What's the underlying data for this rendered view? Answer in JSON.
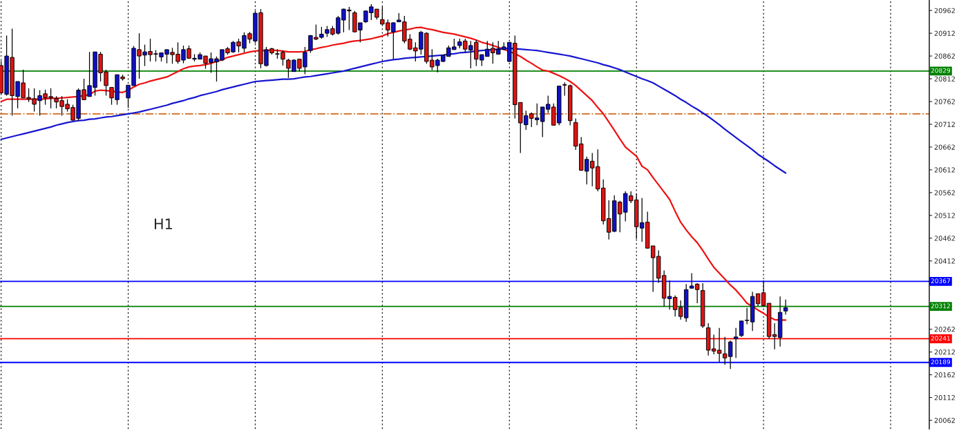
{
  "chart_data": {
    "type": "candlestick",
    "categories": [
      null,
      null,
      null,
      null,
      null,
      null,
      null,
      null,
      null,
      null,
      null,
      null,
      null,
      null,
      null,
      null,
      null,
      null,
      null,
      null,
      null,
      null,
      null,
      null,
      null,
      null,
      null,
      null,
      null,
      null,
      null,
      null,
      null,
      null,
      null,
      null,
      null,
      null,
      null,
      null,
      null,
      null,
      null,
      null,
      null,
      null,
      null,
      null,
      null,
      null,
      null,
      null,
      null,
      null,
      null,
      null,
      null,
      null,
      null,
      null,
      null,
      null,
      null,
      null,
      null,
      null,
      null,
      null,
      null,
      null,
      null,
      null,
      null,
      null,
      null,
      null,
      null,
      null,
      null,
      null,
      null,
      null,
      null,
      null,
      null,
      null,
      null,
      null,
      null,
      null,
      null,
      null,
      null,
      null,
      null,
      null,
      null,
      null,
      null,
      null,
      null,
      null,
      null,
      null,
      null,
      null,
      null,
      null,
      null,
      null,
      null,
      null,
      null,
      null,
      null,
      null,
      null,
      null,
      null,
      null,
      null,
      null,
      null,
      null,
      null,
      null,
      null,
      null,
      null,
      null,
      null,
      null,
      null,
      null,
      null,
      null,
      null,
      null,
      null,
      null,
      null,
      null,
      null
    ],
    "ohlc": [
      [
        20841,
        20851,
        20778,
        20781
      ],
      [
        20778,
        20907,
        20775,
        20862
      ],
      [
        20859,
        20922,
        20731,
        20775
      ],
      [
        20773,
        20806,
        20747,
        20806
      ],
      [
        20803,
        20832,
        20770,
        20770
      ],
      [
        20771,
        20791,
        20761,
        20768
      ],
      [
        20768,
        20791,
        20740,
        20756
      ],
      [
        20764,
        20787,
        20731,
        20775
      ],
      [
        20779,
        20788,
        20755,
        20770
      ],
      [
        20773,
        20791,
        20747,
        20770
      ],
      [
        20769,
        20774,
        20747,
        20761
      ],
      [
        20764,
        20774,
        20731,
        20751
      ],
      [
        20756,
        20767,
        20740,
        20746
      ],
      [
        20749,
        20755,
        20720,
        20721
      ],
      [
        20725,
        20791,
        20720,
        20787
      ],
      [
        20788,
        20812,
        20766,
        20766
      ],
      [
        20773,
        20871,
        20773,
        20797
      ],
      [
        20793,
        20871,
        20775,
        20871
      ],
      [
        20866,
        20871,
        20806,
        20825
      ],
      [
        20827,
        20832,
        20775,
        20797
      ],
      [
        20793,
        20793,
        20755,
        20770
      ],
      [
        20766,
        20821,
        20755,
        20821
      ],
      [
        20816,
        20821,
        20808,
        20812
      ],
      [
        20770,
        20798,
        20748,
        20798
      ],
      [
        20797,
        20884,
        20797,
        20879
      ],
      [
        20876,
        20912,
        20812,
        20862
      ],
      [
        20864,
        20887,
        20840,
        20871
      ],
      [
        20872,
        20900,
        20850,
        20865
      ],
      [
        20866,
        20875,
        20850,
        20867
      ],
      [
        20860,
        20869,
        20850,
        20869
      ],
      [
        20866,
        20876,
        20846,
        20876
      ],
      [
        20870,
        20880,
        20845,
        20865
      ],
      [
        20866,
        20892,
        20845,
        20850
      ],
      [
        20853,
        20885,
        20846,
        20876
      ],
      [
        20878,
        20885,
        20856,
        20857
      ],
      [
        20855,
        20866,
        20850,
        20857
      ],
      [
        20855,
        20870,
        20855,
        20865
      ],
      [
        20862,
        20862,
        20834,
        20846
      ],
      [
        20848,
        20870,
        20825,
        20856
      ],
      [
        20849,
        20861,
        20806,
        20856
      ],
      [
        20853,
        20876,
        20851,
        20876
      ],
      [
        20878,
        20882,
        20865,
        20869
      ],
      [
        20871,
        20895,
        20869,
        20892
      ],
      [
        20893,
        20900,
        20870,
        20884
      ],
      [
        20879,
        20914,
        20870,
        20907
      ],
      [
        20911,
        20915,
        20890,
        20899
      ],
      [
        20895,
        20961,
        20890,
        20956
      ],
      [
        20957,
        20965,
        20835,
        20845
      ],
      [
        20841,
        20882,
        20839,
        20876
      ],
      [
        20878,
        20880,
        20865,
        20869
      ],
      [
        20867,
        20877,
        20856,
        20866
      ],
      [
        20870,
        20874,
        20841,
        20855
      ],
      [
        20853,
        20856,
        20814,
        20835
      ],
      [
        20828,
        20855,
        20827,
        20853
      ],
      [
        20855,
        20856,
        20828,
        20835
      ],
      [
        20838,
        20882,
        20822,
        20870
      ],
      [
        20874,
        20908,
        20869,
        20907
      ],
      [
        20903,
        20931,
        20897,
        20899
      ],
      [
        20903,
        20926,
        20900,
        20910
      ],
      [
        20912,
        20928,
        20904,
        20920
      ],
      [
        20922,
        20928,
        20907,
        20910
      ],
      [
        20912,
        20950,
        20909,
        20946
      ],
      [
        20941,
        20966,
        20914,
        20965
      ],
      [
        20963,
        20970,
        20919,
        20961
      ],
      [
        20957,
        20961,
        20914,
        20915
      ],
      [
        20919,
        20935,
        20892,
        20935
      ],
      [
        20937,
        20961,
        20935,
        20961
      ],
      [
        20957,
        20976,
        20941,
        20970
      ],
      [
        20965,
        20965,
        20942,
        20947
      ],
      [
        20942,
        20970,
        20931,
        20932
      ],
      [
        20935,
        20942,
        20905,
        20919
      ],
      [
        20915,
        20936,
        20855,
        20935
      ],
      [
        20937,
        20956,
        20937,
        20941
      ],
      [
        20937,
        20950,
        20890,
        20895
      ],
      [
        20899,
        20910,
        20875,
        20877
      ],
      [
        20880,
        20892,
        20850,
        20873
      ],
      [
        20877,
        20917,
        20865,
        20914
      ],
      [
        20912,
        20914,
        20845,
        20850
      ],
      [
        20853,
        20877,
        20831,
        20838
      ],
      [
        20841,
        20856,
        20826,
        20853
      ],
      [
        20850,
        20865,
        20849,
        20864
      ],
      [
        20861,
        20885,
        20861,
        20880
      ],
      [
        20876,
        20900,
        20876,
        20882
      ],
      [
        20885,
        20900,
        20879,
        20893
      ],
      [
        20895,
        20900,
        20870,
        20877
      ],
      [
        20875,
        20895,
        20835,
        20885
      ],
      [
        20892,
        20897,
        20840,
        20855
      ],
      [
        20853,
        20865,
        20840,
        20865
      ],
      [
        20861,
        20895,
        20861,
        20877
      ],
      [
        20879,
        20892,
        20845,
        20869
      ],
      [
        20866,
        20895,
        20866,
        20877
      ],
      [
        20876,
        20892,
        20875,
        20882
      ],
      [
        20850,
        20892,
        20849,
        20892
      ],
      [
        20890,
        20907,
        20725,
        20755
      ],
      [
        20760,
        20760,
        20649,
        20715
      ],
      [
        20711,
        20742,
        20700,
        20731
      ],
      [
        20735,
        20738,
        20706,
        20725
      ],
      [
        20722,
        20758,
        20710,
        20726
      ],
      [
        20718,
        20750,
        20684,
        20750
      ],
      [
        20745,
        20775,
        20737,
        20756
      ],
      [
        20750,
        20758,
        20710,
        20710
      ],
      [
        20715,
        20796,
        20710,
        20796
      ],
      [
        20799,
        20804,
        20775,
        20798
      ],
      [
        20797,
        20799,
        20710,
        20720
      ],
      [
        20716,
        20725,
        20656,
        20664
      ],
      [
        20669,
        20684,
        20610,
        20611
      ],
      [
        20609,
        20641,
        20580,
        20635
      ],
      [
        20631,
        20649,
        20576,
        20616
      ],
      [
        20619,
        20657,
        20565,
        20570
      ],
      [
        20572,
        20591,
        20492,
        20500
      ],
      [
        20505,
        20545,
        20459,
        20475
      ],
      [
        20477,
        20556,
        20475,
        20544
      ],
      [
        20541,
        20544,
        20475,
        20515
      ],
      [
        20519,
        20565,
        20499,
        20560
      ],
      [
        20555,
        20565,
        20539,
        20544
      ],
      [
        20546,
        20560,
        20460,
        20487
      ],
      [
        20484,
        20550,
        20454,
        20496
      ],
      [
        20497,
        20520,
        20439,
        20440
      ],
      [
        20445,
        20445,
        20344,
        20419
      ],
      [
        20422,
        20435,
        20364,
        20374
      ],
      [
        20380,
        20391,
        20312,
        20330
      ],
      [
        20329,
        20369,
        20305,
        20334
      ],
      [
        20332,
        20336,
        20290,
        20305
      ],
      [
        20310,
        20325,
        20283,
        20290
      ],
      [
        20287,
        20361,
        20278,
        20349
      ],
      [
        20352,
        20385,
        20352,
        20357
      ],
      [
        20361,
        20363,
        20319,
        20349
      ],
      [
        20347,
        20363,
        20265,
        20269
      ],
      [
        20265,
        20275,
        20204,
        20216
      ],
      [
        20219,
        20250,
        20207,
        20214
      ],
      [
        20216,
        20265,
        20189,
        20209
      ],
      [
        20208,
        20245,
        20184,
        20199
      ],
      [
        20202,
        20237,
        20175,
        20234
      ],
      [
        20241,
        20265,
        20199,
        20245
      ],
      [
        20248,
        20280,
        20245,
        20280
      ],
      [
        20281,
        20309,
        20273,
        20282
      ],
      [
        20278,
        20344,
        20258,
        20334
      ],
      [
        20340,
        20340,
        20313,
        20318
      ],
      [
        20342,
        20369,
        20312,
        20314
      ],
      [
        20319,
        20319,
        20241,
        20246
      ],
      [
        20250,
        20275,
        20218,
        20246
      ],
      [
        20244,
        20334,
        20224,
        20299
      ],
      [
        20302,
        20327,
        20294,
        20309
      ]
    ],
    "colors": [
      "#dc1414",
      "#1010c8",
      "#dc1414",
      "#1010c8",
      "#dc1414",
      "#dc1414",
      "#dc1414",
      "#1010c8",
      "#dc1414",
      "#dc1414",
      "#dc1414",
      "#dc1414",
      "#dc1414",
      "#dc1414",
      "#1010c8",
      "#dc1414",
      "#1010c8",
      "#1010c8",
      "#dc1414",
      "#dc1414",
      "#dc1414",
      "#1010c8",
      "#dc1414",
      "#1010c8",
      "#1010c8",
      "#dc1414",
      "#1010c8",
      "#dc1414",
      "#1010c8",
      "#1010c8",
      "#1010c8",
      "#dc1414",
      "#dc1414",
      "#1010c8",
      "#dc1414",
      "#1010c8",
      "#1010c8",
      "#dc1414",
      "#1010c8",
      "#1010c8",
      "#1010c8",
      "#dc1414",
      "#1010c8",
      "#dc1414",
      "#1010c8",
      "#dc1414",
      "#1010c8",
      "#dc1414",
      "#1010c8",
      "#dc1414",
      "#dc1414",
      "#dc1414",
      "#dc1414",
      "#1010c8",
      "#dc1414",
      "#1010c8",
      "#1010c8",
      "#dc1414",
      "#1010c8",
      "#1010c8",
      "#dc1414",
      "#1010c8",
      "#1010c8",
      "#dc1414",
      "#dc1414",
      "#1010c8",
      "#1010c8",
      "#1010c8",
      "#dc1414",
      "#dc1414",
      "#dc1414",
      "#1010c8",
      "#1010c8",
      "#dc1414",
      "#dc1414",
      "#dc1414",
      "#1010c8",
      "#dc1414",
      "#dc1414",
      "#1010c8",
      "#1010c8",
      "#1010c8",
      "#1010c8",
      "#1010c8",
      "#dc1414",
      "#1010c8",
      "#dc1414",
      "#1010c8",
      "#1010c8",
      "#dc1414",
      "#1010c8",
      "#1010c8",
      "#1010c8",
      "#dc1414",
      "#dc1414",
      "#1010c8",
      "#dc1414",
      "#1010c8",
      "#1010c8",
      "#1010c8",
      "#dc1414",
      "#1010c8",
      "#dc1414",
      "#dc1414",
      "#dc1414",
      "#dc1414",
      "#1010c8",
      "#dc1414",
      "#dc1414",
      "#dc1414",
      "#dc1414",
      "#1010c8",
      "#dc1414",
      "#1010c8",
      "#dc1414",
      "#dc1414",
      "#1010c8",
      "#dc1414",
      "#dc1414",
      "#dc1414",
      "#dc1414",
      "#1010c8",
      "#dc1414",
      "#dc1414",
      "#1010c8",
      "#1010c8",
      "#dc1414",
      "#dc1414",
      "#dc1414",
      "#dc1414",
      "#dc1414",
      "#dc1414",
      "#1010c8",
      "#1010c8",
      "#1010c8",
      "#1010c8",
      "#1010c8",
      "#dc1414",
      "#dc1414",
      "#dc1414",
      "#dc1414",
      "#1010c8",
      "#1010c8"
    ],
    "series": [
      {
        "type": "line",
        "color": "#ee1111",
        "values": [
          20762,
          20767,
          20767,
          20767,
          20767,
          20767,
          20767,
          20767,
          20768,
          20769,
          20769,
          20770,
          20771,
          20772,
          20773,
          20775,
          20777,
          20785,
          20787,
          20786,
          20785,
          20783,
          20782,
          20787,
          20794,
          20800,
          20803,
          20807,
          20810,
          20813,
          20816,
          20822,
          20828,
          20834,
          20838,
          20840,
          20841,
          20843,
          20846,
          20850,
          20854,
          20859,
          20862,
          20865,
          20868,
          20871,
          20873,
          20874,
          20874,
          20875,
          20874,
          20873,
          20871,
          20871,
          20871,
          20872,
          20876,
          20878,
          20881,
          20883,
          20886,
          20888,
          20890,
          20893,
          20895,
          20896,
          20898,
          20900,
          20903,
          20906,
          20911,
          20914,
          20917,
          20919,
          20921,
          20924,
          20925,
          20922,
          20920,
          20917,
          20914,
          20912,
          20910,
          20907,
          20904,
          20901,
          20897,
          20892,
          20889,
          20885,
          20881,
          20877,
          20872,
          20867,
          20861,
          20853,
          20846,
          20838,
          20831,
          20829,
          20824,
          20819,
          20813,
          20806,
          20797,
          20786,
          20775,
          20764,
          20749,
          20735,
          20717,
          20699,
          20680,
          20662,
          20652,
          20642,
          20620,
          20612,
          20595,
          20579,
          20563,
          20547,
          20521,
          20497,
          20480,
          20465,
          20452,
          20435,
          20416,
          20398,
          20385,
          20372,
          20359,
          20348,
          20334,
          20319,
          20312,
          20304,
          20297,
          20289,
          20283,
          20282,
          20282
        ]
      },
      {
        "type": "line",
        "color": "#1515d0",
        "values": [
          20679,
          20682,
          20685,
          20688,
          20691,
          20694,
          20697,
          20700,
          20703,
          20706,
          20710,
          20713,
          20716,
          20718,
          20720,
          20721,
          20723,
          20724,
          20726,
          20728,
          20729,
          20731,
          20733,
          20735,
          20737,
          20739,
          20742,
          20745,
          20748,
          20751,
          20754,
          20758,
          20761,
          20764,
          20768,
          20771,
          20775,
          20778,
          20781,
          20784,
          20788,
          20791,
          20794,
          20797,
          20800,
          20803,
          20806,
          20807,
          20808,
          20809,
          20810,
          20811,
          20811,
          20812,
          20814,
          20816,
          20817,
          20819,
          20821,
          20823,
          20825,
          20827,
          20829,
          20832,
          20835,
          20838,
          20841,
          20844,
          20847,
          20850,
          20852,
          20854,
          20855,
          20857,
          20858,
          20859,
          20860,
          20861,
          20862,
          20863,
          20864,
          20866,
          20867,
          20869,
          20870,
          20871,
          20873,
          20874,
          20875,
          20876,
          20877,
          20878,
          20879,
          20878,
          20877,
          20876,
          20875,
          20874,
          20872,
          20870,
          20868,
          20866,
          20864,
          20862,
          20859,
          20856,
          20853,
          20850,
          20847,
          20843,
          20840,
          20836,
          20832,
          20827,
          20822,
          20817,
          20812,
          20808,
          20803,
          20796,
          20789,
          20782,
          20775,
          20767,
          20760,
          20752,
          20745,
          20737,
          20729,
          20720,
          20711,
          20701,
          20692,
          20683,
          20674,
          20665,
          20656,
          20646,
          20638,
          20630,
          20621,
          20613,
          20605
        ]
      }
    ],
    "ylim": [
      20043,
      20985
    ],
    "yticks": [
      20062,
      20112,
      20162,
      20212,
      20262,
      {
        "value": 20312,
        "label": null
      },
      20412,
      20462,
      20512,
      20562,
      20612,
      20662,
      20712,
      20762,
      20812,
      20862,
      20912,
      20962
    ],
    "grid": "x",
    "tick_labels": "y",
    "ref_lines": [
      {
        "axis": "y",
        "value": 20829,
        "label": "20829",
        "color": "#008000",
        "line_style": "solid"
      },
      {
        "axis": "y",
        "value": 20735,
        "color": "#d2691e",
        "line_style": "dashdot"
      },
      {
        "axis": "y",
        "value": 20367,
        "label": "20367",
        "color": "#0000ff",
        "line_style": "solid"
      },
      {
        "axis": "y",
        "value": 20312,
        "label": "20312",
        "color": "#008000",
        "line_style": "solid"
      },
      {
        "axis": "y",
        "value": 20241,
        "label": "20241",
        "color": "#ff0000",
        "line_style": "solid"
      },
      {
        "axis": "y",
        "value": 20189,
        "label": "20189",
        "color": "#0000ff",
        "line_style": "solid"
      }
    ],
    "annotations": [
      "H1"
    ]
  }
}
